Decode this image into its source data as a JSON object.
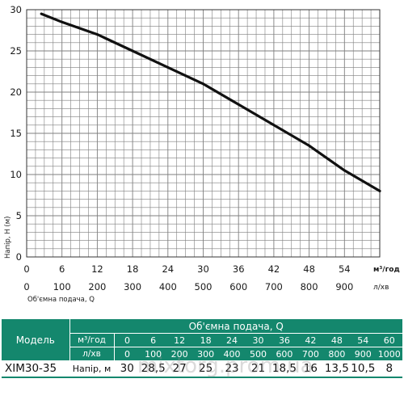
{
  "chart_data": {
    "type": "line",
    "y_axis": {
      "label": "Напір, Н (м)",
      "range": [
        0,
        30
      ],
      "ticks": [
        0,
        5,
        10,
        15,
        20,
        25,
        30
      ]
    },
    "x_axis": {
      "label": "Об'ємна подача, Q",
      "range": [
        0,
        60
      ],
      "primary": {
        "unit": "м³/год",
        "ticks": [
          0,
          6,
          12,
          18,
          24,
          30,
          36,
          42,
          48,
          54
        ]
      },
      "secondary": {
        "unit": "л/хв",
        "ticks": [
          0,
          100,
          200,
          300,
          400,
          500,
          600,
          700,
          800,
          900
        ]
      }
    },
    "grid": true,
    "series": [
      {
        "x": [
          2.5,
          6,
          12,
          18,
          24,
          30,
          36,
          42,
          48,
          54,
          60
        ],
        "y": [
          29.5,
          28.5,
          27,
          25,
          23,
          21,
          18.5,
          16,
          13.5,
          10.5,
          8
        ]
      }
    ]
  },
  "table": {
    "model_header": "Модель",
    "group_header": "Об'ємна подача, Q",
    "flow_m3_label": "м³/год",
    "flow_lmin_label": "л/хв",
    "flow_m3": [
      "0",
      "6",
      "12",
      "18",
      "24",
      "30",
      "36",
      "42",
      "48",
      "54",
      "60"
    ],
    "flow_lmin": [
      "0",
      "100",
      "200",
      "300",
      "400",
      "500",
      "600",
      "700",
      "800",
      "900",
      "1000"
    ],
    "rows": [
      {
        "model": "XIM30-35",
        "label": "Напір, м",
        "values": [
          "30",
          "28,5",
          "27",
          "25",
          "23",
          "21",
          "18,5",
          "16",
          "13,5",
          "10,5",
          "8"
        ]
      }
    ]
  },
  "watermark": "mixtorg.prom.ua",
  "colors": {
    "accent": "#14876d",
    "grid": "#7f7f7f",
    "curve": "#111111"
  }
}
